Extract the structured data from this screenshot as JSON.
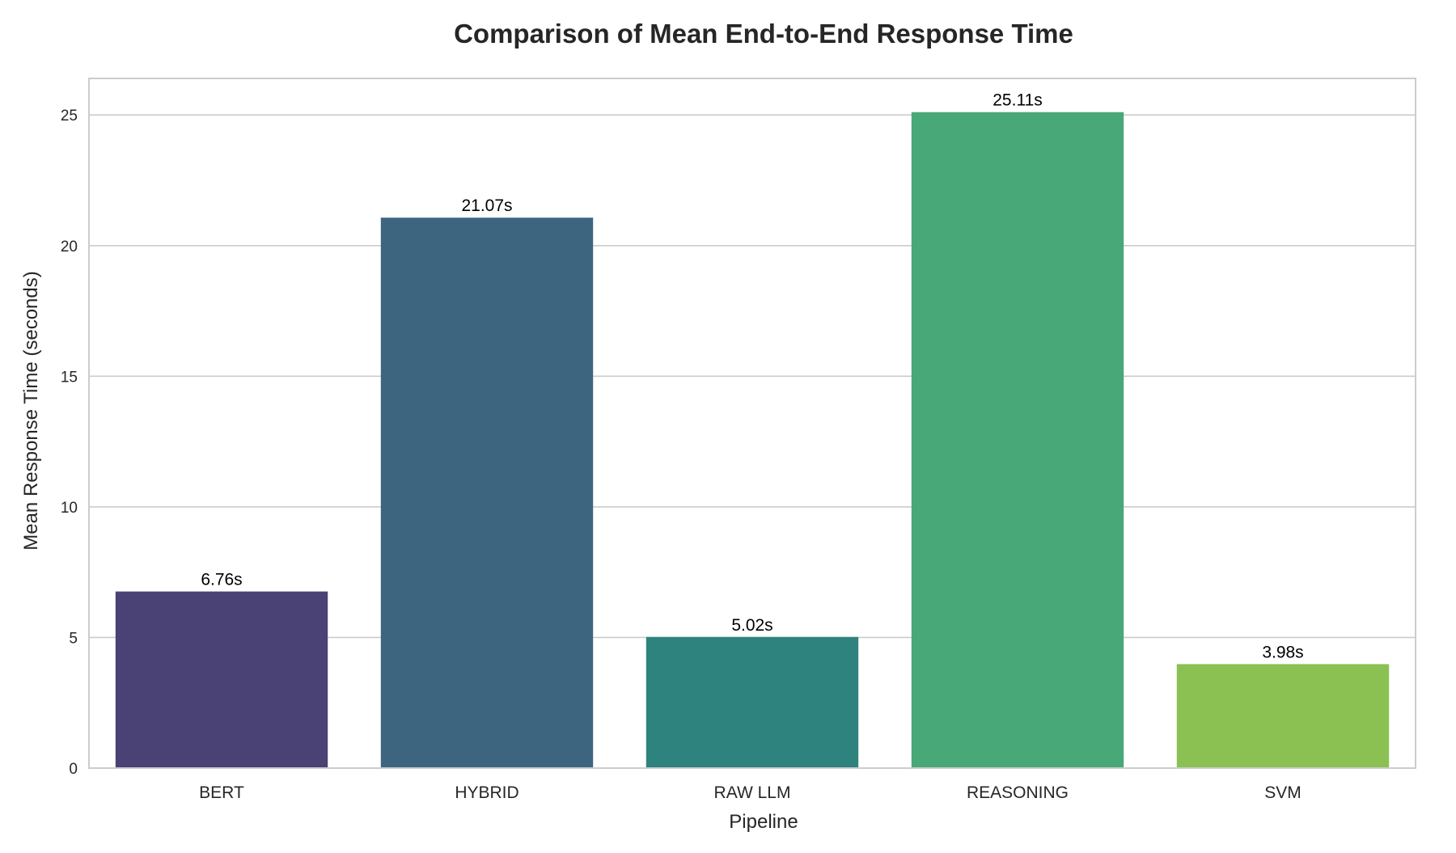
{
  "chart_data": {
    "type": "bar",
    "title": "Comparison of Mean End-to-End Response Time",
    "xlabel": "Pipeline",
    "ylabel": "Mean Response Time (seconds)",
    "categories": [
      "BERT",
      "HYBRID",
      "RAW LLM",
      "REASONING",
      "SVM"
    ],
    "values": [
      6.76,
      21.07,
      5.02,
      25.11,
      3.98
    ],
    "data_labels": [
      "6.76s",
      "21.07s",
      "5.02s",
      "25.11s",
      "3.98s"
    ],
    "colors": [
      "#4a4175",
      "#3e6580",
      "#2e837e",
      "#48a878",
      "#8bc153"
    ],
    "ylim": [
      0,
      26.4
    ],
    "yticks": [
      0,
      5,
      10,
      15,
      20,
      25
    ],
    "grid": "horizontal",
    "legend": "none"
  }
}
